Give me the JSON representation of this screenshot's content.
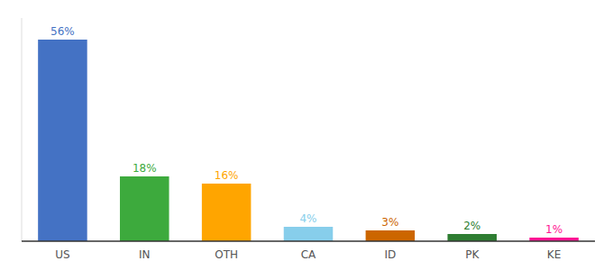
{
  "chart_data": {
    "type": "bar",
    "categories": [
      "US",
      "IN",
      "OTH",
      "CA",
      "ID",
      "PK",
      "KE"
    ],
    "values": [
      56,
      18,
      16,
      4,
      3,
      2,
      1
    ],
    "value_labels": [
      "56%",
      "18%",
      "16%",
      "4%",
      "3%",
      "2%",
      "1%"
    ],
    "colors": [
      "#4472C4",
      "#3DAA3D",
      "#FFA500",
      "#87CEEB",
      "#CC6600",
      "#2E7D32",
      "#FF1493"
    ],
    "ylim": [
      0,
      62
    ],
    "data_labels": true,
    "grid": false,
    "tick_labels": "x"
  }
}
